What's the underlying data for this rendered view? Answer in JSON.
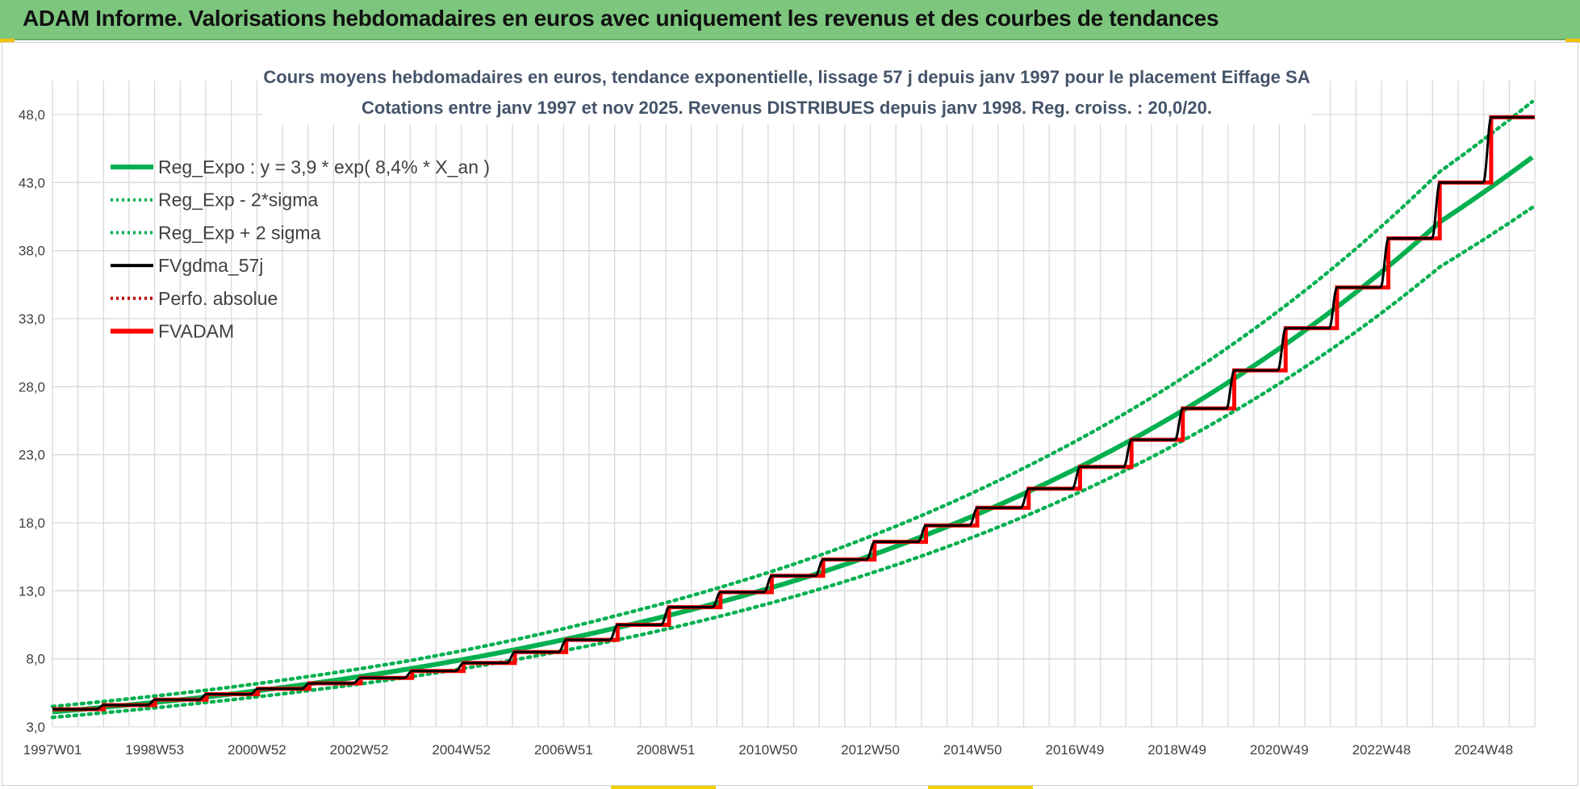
{
  "banner": {
    "title": "ADAM Informe. Valorisations hebdomadaires en euros avec uniquement les revenus et des courbes de tendances"
  },
  "colors": {
    "banner_bg": "#7dc67d",
    "regression": "#00b050",
    "smoothed": "#000000",
    "fvadam": "#ff0000",
    "perfo": "#c00000"
  },
  "chart_data": {
    "type": "line",
    "title": "Cours moyens hebdomadaires en euros, tendance exponentielle, lissage 57 j depuis janv 1997 pour le placement Eiffage SA",
    "subtitle": "Cotations entre janv 1997 et nov 2025. Revenus DISTRIBUES depuis janv 1998. Reg. croiss. : 20,0/20.",
    "x_tick_labels": [
      "1997W01",
      "1998W53",
      "2000W52",
      "2002W52",
      "2004W52",
      "2006W51",
      "2008W51",
      "2010W50",
      "2012W50",
      "2014W50",
      "2016W49",
      "2018W49",
      "2020W49",
      "2022W48",
      "2024W48"
    ],
    "y_tick_labels": [
      "3,0",
      "8,0",
      "13,0",
      "18,0",
      "23,0",
      "28,0",
      "33,0",
      "38,0",
      "43,0",
      "48,0"
    ],
    "x_range_years": [
      1997.0,
      2025.85
    ],
    "ylim": [
      3.0,
      48.0
    ],
    "grid": true,
    "legend_position": "top-left",
    "legend": [
      {
        "label": "Reg_Expo : y = 3,9 * exp( 8,4% *  X_an )",
        "color": "#00b050",
        "style": "solid-thick"
      },
      {
        "label": "Reg_Exp - 2*sigma",
        "color": "#00b050",
        "style": "dotted"
      },
      {
        "label": "Reg_Exp + 2 sigma",
        "color": "#00b050",
        "style": "dotted"
      },
      {
        "label": "FVgdma_57j",
        "color": "#000000",
        "style": "solid"
      },
      {
        "label": "Perfo. absolue",
        "color": "#c00000",
        "style": "dotted"
      },
      {
        "label": "FVADAM",
        "color": "#ff0000",
        "style": "solid-thick"
      }
    ],
    "series": [
      {
        "name": "Reg_Expo : y = 3,9 * exp( 8,4% *  X_an )",
        "x": [
          1997.0,
          2000.0,
          2004.0,
          2008.0,
          2012.0,
          2016.0,
          2020.0,
          2024.0,
          2025.85
        ],
        "values": [
          4.1,
          5.2,
          7.3,
          10.3,
          14.4,
          20.3,
          28.6,
          40.1,
          45.0
        ]
      },
      {
        "name": "Reg_Exp - 2*sigma",
        "x": [
          1997.0,
          2000.0,
          2004.0,
          2008.0,
          2012.0,
          2016.0,
          2020.0,
          2024.0,
          2025.85
        ],
        "values": [
          3.7,
          4.8,
          6.7,
          9.4,
          13.2,
          18.6,
          26.2,
          36.8,
          41.3
        ]
      },
      {
        "name": "Reg_Exp + 2 sigma",
        "x": [
          1997.0,
          2000.0,
          2004.0,
          2008.0,
          2012.0,
          2016.0,
          2020.0,
          2024.0,
          2025.85
        ],
        "values": [
          4.5,
          5.7,
          7.9,
          11.2,
          15.7,
          22.2,
          31.2,
          43.8,
          49.1
        ]
      },
      {
        "name": "FVADAM",
        "step_x": [
          1997.0,
          1998.0,
          1999.0,
          2000.0,
          2001.0,
          2002.0,
          2003.0,
          2004.0,
          2005.0,
          2006.0,
          2007.0,
          2008.0,
          2009.0,
          2010.0,
          2011.0,
          2012.0,
          2013.0,
          2014.0,
          2015.0,
          2016.0,
          2017.0,
          2018.0,
          2019.0,
          2020.0,
          2021.0,
          2022.0,
          2023.0,
          2024.0,
          2025.0,
          2025.85
        ],
        "step_values": [
          4.3,
          4.6,
          5.0,
          5.4,
          5.8,
          6.2,
          6.6,
          7.1,
          7.7,
          8.5,
          9.4,
          10.5,
          11.8,
          12.9,
          14.1,
          15.3,
          16.6,
          17.8,
          19.1,
          20.5,
          22.1,
          24.1,
          26.4,
          29.2,
          32.3,
          35.3,
          38.9,
          43.0,
          47.8,
          47.8
        ]
      },
      {
        "name": "FVgdma_57j",
        "description_values": "smoothed version of FVADAM steps"
      },
      {
        "name": "Perfo. absolue",
        "values": []
      }
    ]
  }
}
